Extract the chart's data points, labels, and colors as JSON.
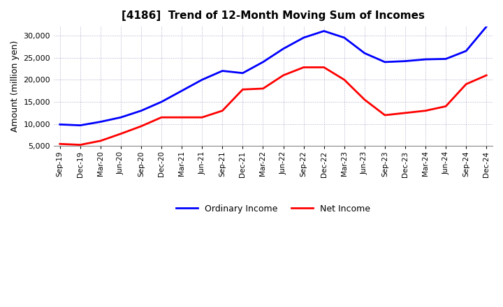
{
  "title": "[4186]  Trend of 12-Month Moving Sum of Incomes",
  "ylabel": "Amount (million yen)",
  "ylim": [
    5000,
    32000
  ],
  "yticks": [
    5000,
    10000,
    15000,
    20000,
    25000,
    30000
  ],
  "ordinary_income_color": "#0000FF",
  "net_income_color": "#FF0000",
  "background_color": "#FFFFFF",
  "grid_color": "#AAAACC",
  "dates": [
    "Sep-19",
    "Dec-19",
    "Mar-20",
    "Jun-20",
    "Sep-20",
    "Dec-20",
    "Mar-21",
    "Jun-21",
    "Sep-21",
    "Dec-21",
    "Mar-22",
    "Jun-22",
    "Sep-22",
    "Dec-22",
    "Mar-23",
    "Jun-23",
    "Sep-23",
    "Dec-23",
    "Mar-24",
    "Jun-24",
    "Sep-24",
    "Dec-24"
  ],
  "ordinary_income": [
    9900,
    9700,
    10500,
    11500,
    13000,
    15000,
    17500,
    20000,
    22000,
    21500,
    24000,
    27000,
    29500,
    31000,
    29500,
    26000,
    24000,
    24200,
    24600,
    24700,
    26500,
    32000
  ],
  "net_income": [
    5500,
    5300,
    6200,
    7800,
    9500,
    11500,
    11500,
    11500,
    13000,
    17800,
    18000,
    21000,
    22800,
    22800,
    20000,
    15500,
    12000,
    12500,
    13000,
    14000,
    19000,
    21000
  ],
  "legend_labels": [
    "Ordinary Income",
    "Net Income"
  ]
}
